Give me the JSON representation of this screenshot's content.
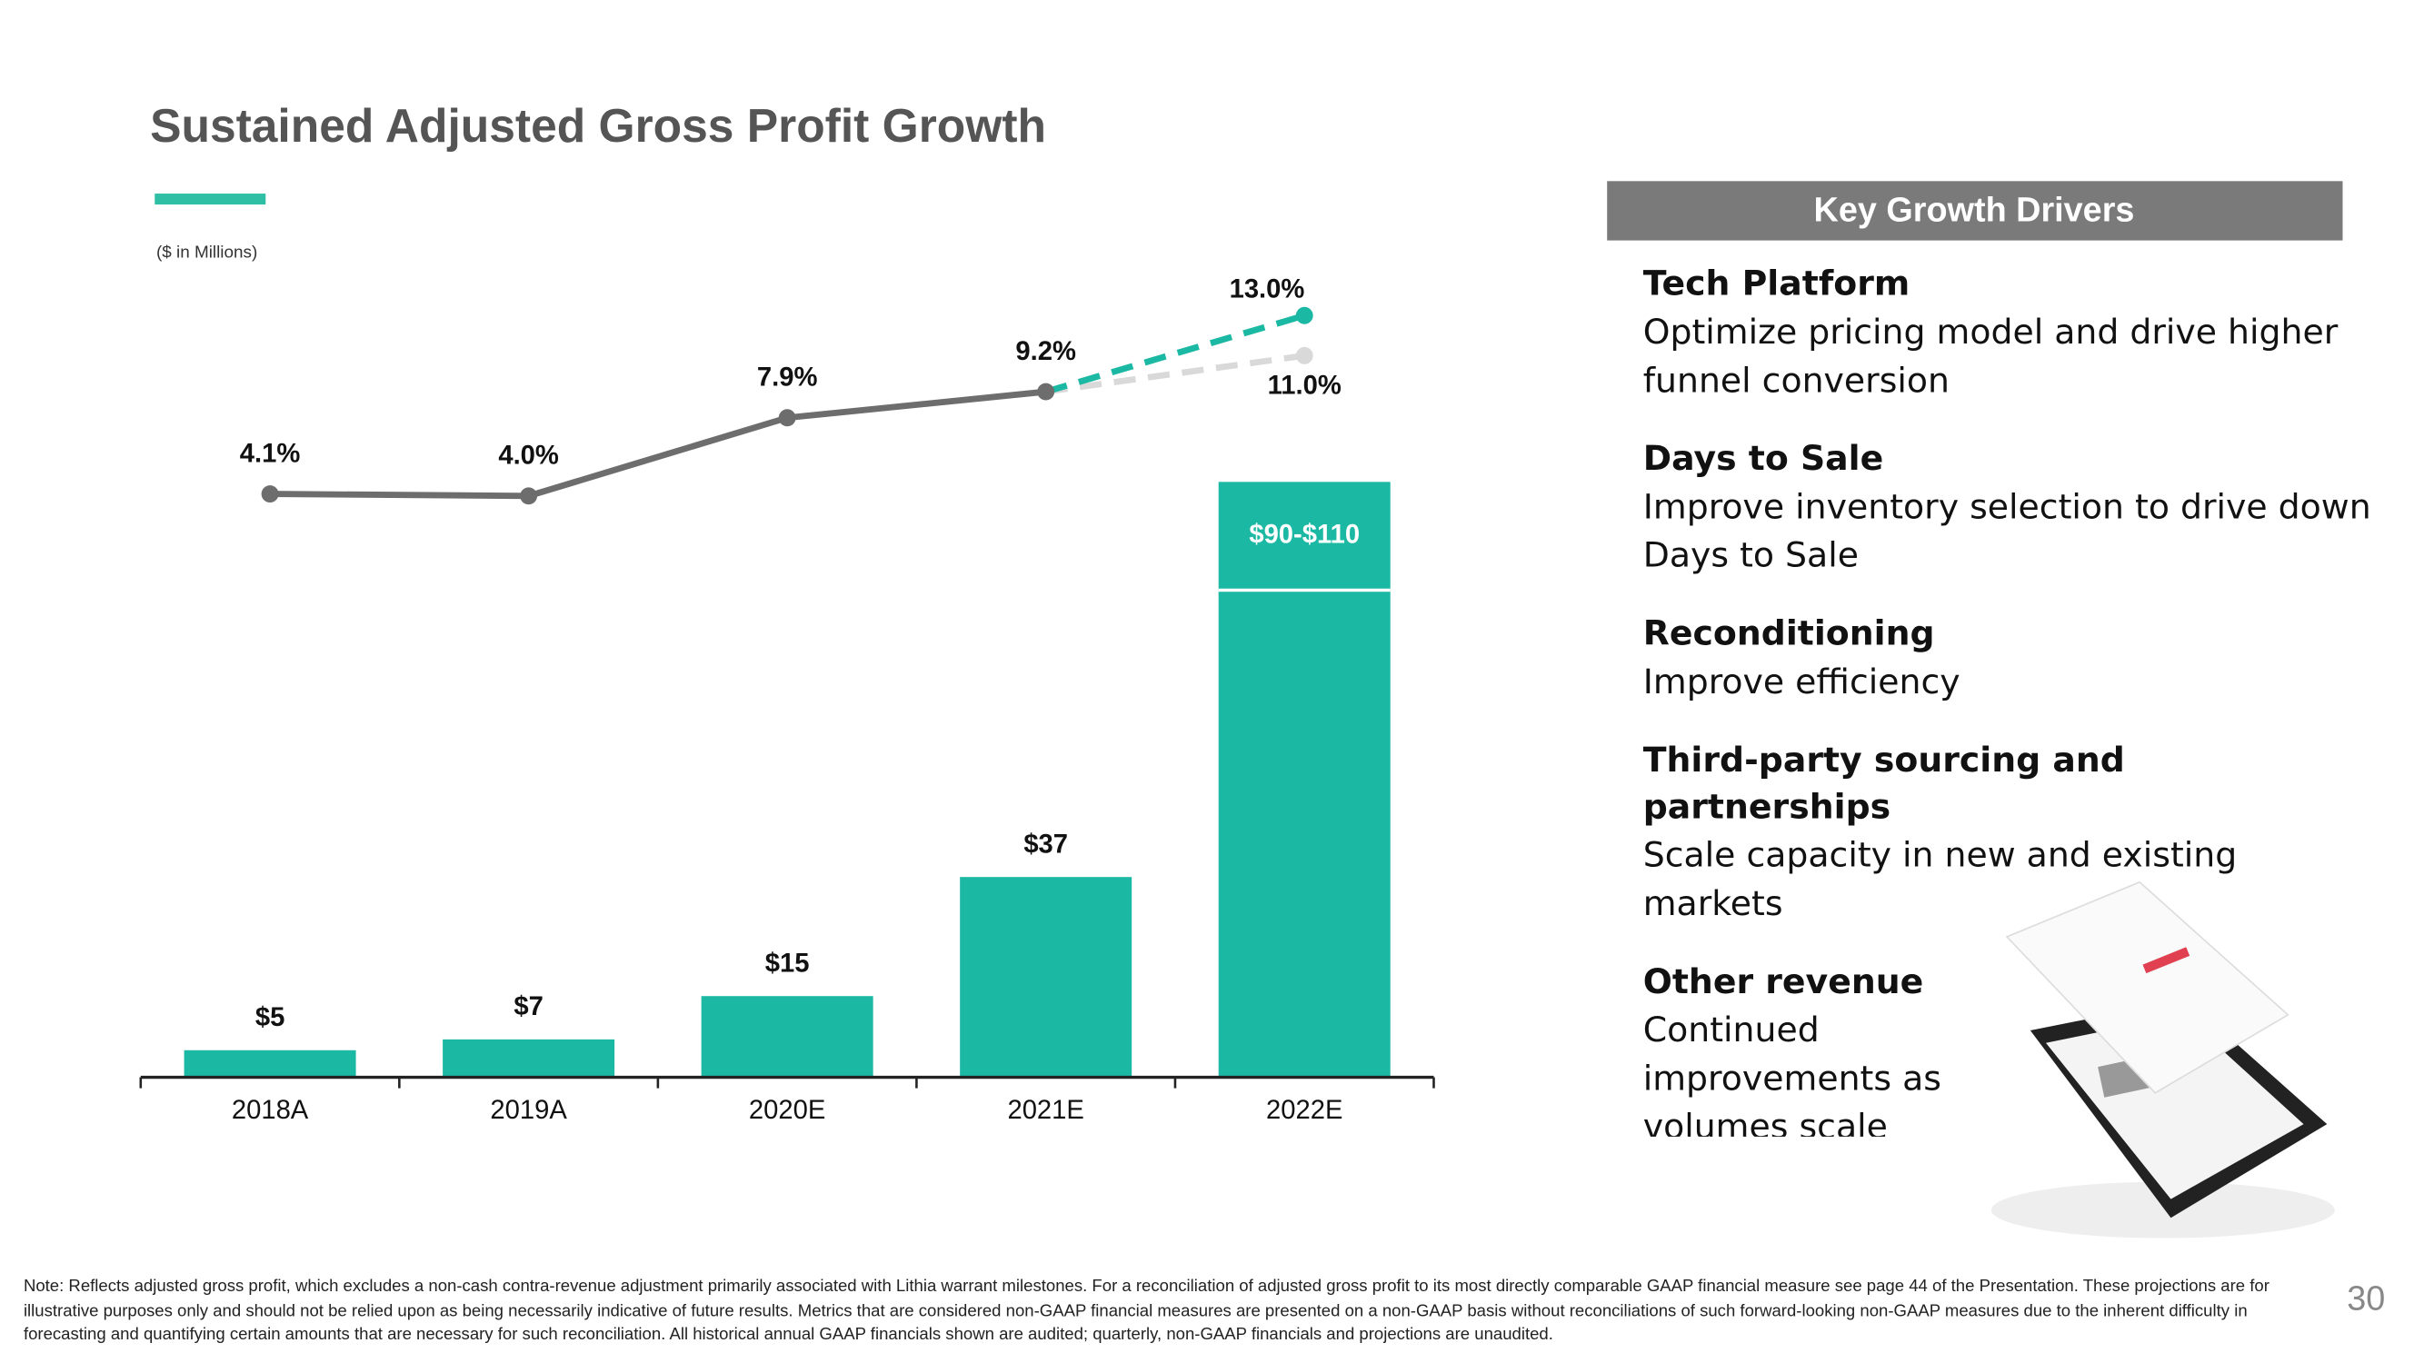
{
  "chart_data": {
    "type": "bar",
    "title": "Sustained Adjusted Gross Profit Growth",
    "subtitle": "($ in Millions)",
    "categories": [
      "2018A",
      "2019A",
      "2020E",
      "2021E",
      "2022E"
    ],
    "values": [
      5,
      7,
      15,
      37,
      90
    ],
    "range_high": [
      null,
      null,
      null,
      null,
      110
    ],
    "value_labels": [
      "$5",
      "$7",
      "$15",
      "$37",
      "$90-$110"
    ],
    "color": "#1bb8a3",
    "ylim": [
      0,
      150
    ],
    "y2lim": [
      -25,
      15.5
    ],
    "series": [
      {
        "type": "line",
        "axis": "y2",
        "color": "#6d6d6d",
        "dashed": false,
        "values": [
          4.1,
          4.0,
          7.9,
          9.2,
          null
        ],
        "value_labels": [
          "4.1%",
          "4.0%",
          "7.9%",
          "9.2%",
          null
        ]
      },
      {
        "type": "line",
        "axis": "y2",
        "color": "#1bb8a3",
        "dashed": true,
        "values": [
          null,
          null,
          null,
          9.2,
          13.0
        ],
        "value_labels": [
          null,
          null,
          null,
          null,
          "13.0%"
        ]
      },
      {
        "type": "line",
        "axis": "y2",
        "color": "#d9d9d9",
        "dashed": true,
        "values": [
          null,
          null,
          null,
          9.2,
          11.0
        ],
        "value_labels": [
          null,
          null,
          null,
          null,
          "11.0%"
        ]
      }
    ]
  },
  "drivers": {
    "title": "Key Growth Drivers",
    "items": [
      {
        "title": "Tech Platform",
        "text": "Optimize pricing model and drive higher funnel conversion"
      },
      {
        "title": "Days to Sale",
        "text": "Improve inventory selection to drive down Days to Sale"
      },
      {
        "title": "Reconditioning",
        "text": "Improve efficiency"
      },
      {
        "title": "Third-party sourcing and partnerships",
        "text": "Scale capacity in new and existing markets"
      },
      {
        "title": "Other revenue",
        "text": "Continued improvements as volumes scale"
      }
    ]
  },
  "footnote": "Note: Reflects adjusted gross profit, which excludes a non-cash contra-revenue adjustment primarily associated with Lithia warrant milestones. For a reconciliation of adjusted gross profit to its most directly comparable GAAP financial measure see page 44 of the Presentation. These projections are for illustrative purposes only and should not be relied upon as being necessarily indicative of future results. Metrics that are considered non-GAAP financial measures are presented on a non-GAAP basis without reconciliations of such forward-looking non-GAAP measures due to the inherent difficulty in forecasting and quantifying certain amounts that are necessary for such reconciliation. All historical annual GAAP financials shown are audited; quarterly, non-GAAP financials and projections are unaudited.",
  "page_number": "30"
}
